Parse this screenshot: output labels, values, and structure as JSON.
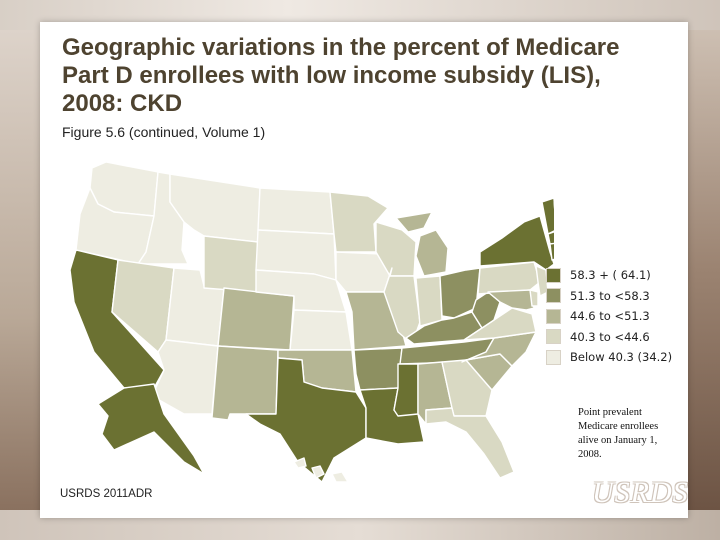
{
  "title": "Geographic variations in the percent of Medicare Part D enrollees with low income subsidy (LIS), 2008: CKD",
  "subtitle": "Figure 5.6 (continued, Volume 1)",
  "source": "USRDS 2011ADR",
  "note": "Point prevalent Medicare enrollees alive on January 1, 2008.",
  "logo": "USRDS",
  "colors": {
    "c1": "#6b7132",
    "c2": "#8d9061",
    "c3": "#b5b694",
    "c4": "#d9d9c3",
    "c5": "#eeede2"
  },
  "legend": [
    {
      "label": "58.3 + (  64.1)",
      "cls": "c1"
    },
    {
      "label": "51.3 to <58.3",
      "cls": "c2"
    },
    {
      "label": "44.6 to <51.3",
      "cls": "c3"
    },
    {
      "label": "40.3 to <44.6",
      "cls": "c4"
    },
    {
      "label": "Below  40.3 (34.2)",
      "cls": "c5"
    }
  ],
  "states": {
    "WA": "c5",
    "OR": "c5",
    "CA": "c1",
    "ID": "c5",
    "NV": "c4",
    "UT": "c5",
    "AZ": "c5",
    "MT": "c5",
    "WY": "c4",
    "CO": "c3",
    "NM": "c3",
    "ND": "c5",
    "SD": "c5",
    "NE": "c5",
    "KS": "c5",
    "OK": "c3",
    "TX": "c1",
    "MN": "c4",
    "IA": "c5",
    "MO": "c3",
    "AR": "c2",
    "LA": "c1",
    "WI": "c4",
    "IL": "c4",
    "MI": "c3",
    "IN": "c4",
    "OH": "c2",
    "KY": "c2",
    "TN": "c2",
    "MS": "c1",
    "AL": "c3",
    "GA": "c4",
    "FL": "c4",
    "SC": "c3",
    "NC": "c3",
    "VA": "c4",
    "WV": "c2",
    "PA": "c4",
    "NY": "c1",
    "VT": "c1",
    "NH": "c4",
    "ME": "c1",
    "MA": "c1",
    "CT": "c1",
    "RI": "c1",
    "NJ": "c4",
    "DE": "c4",
    "MD": "c3",
    "AK": "c1",
    "HI": "c5"
  }
}
